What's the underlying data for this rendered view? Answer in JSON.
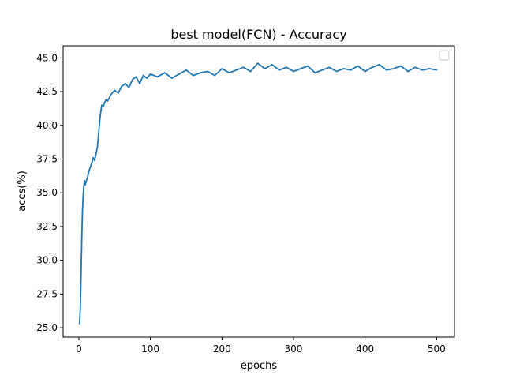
{
  "chart_data": {
    "type": "line",
    "title": "best model(FCN) - Accuracy",
    "xlabel": "epochs",
    "ylabel": "accs(%)",
    "xlim": [
      -22,
      525
    ],
    "ylim": [
      24.3,
      45.9
    ],
    "xticks": [
      0,
      100,
      200,
      300,
      400,
      500
    ],
    "yticks": [
      25.0,
      27.5,
      30.0,
      32.5,
      35.0,
      37.5,
      40.0,
      42.5,
      45.0
    ],
    "xtick_labels": [
      "0",
      "100",
      "200",
      "300",
      "400",
      "500"
    ],
    "ytick_labels": [
      "25.0",
      "27.5",
      "30.0",
      "32.5",
      "35.0",
      "37.5",
      "40.0",
      "42.5",
      "45.0"
    ],
    "grid": false,
    "legend": "top-right",
    "legend_entries": [],
    "color": "#1f77b4",
    "series": [
      {
        "x": [
          1,
          2,
          3,
          4,
          5,
          6,
          7,
          8,
          9,
          10,
          12,
          14,
          16,
          18,
          20,
          22,
          24,
          26,
          28,
          30,
          32,
          34,
          36,
          38,
          40,
          45,
          50,
          55,
          60,
          65,
          70,
          75,
          80,
          85,
          90,
          95,
          100,
          110,
          120,
          130,
          140,
          150,
          160,
          170,
          180,
          190,
          200,
          210,
          220,
          230,
          240,
          250,
          260,
          270,
          280,
          290,
          300,
          310,
          320,
          330,
          340,
          350,
          360,
          370,
          380,
          390,
          400,
          410,
          420,
          430,
          440,
          450,
          460,
          470,
          480,
          490,
          500
        ],
        "y": [
          25.3,
          26.5,
          28.8,
          31.5,
          33.6,
          34.8,
          35.5,
          35.9,
          35.6,
          35.8,
          36.1,
          36.6,
          36.9,
          37.2,
          37.6,
          37.4,
          37.9,
          38.4,
          39.6,
          40.8,
          41.5,
          41.4,
          41.7,
          41.9,
          41.8,
          42.3,
          42.6,
          42.4,
          42.9,
          43.1,
          42.8,
          43.4,
          43.6,
          43.1,
          43.7,
          43.5,
          43.8,
          43.6,
          43.9,
          43.5,
          43.8,
          44.1,
          43.7,
          43.9,
          44.0,
          43.7,
          44.2,
          43.9,
          44.1,
          44.3,
          44.0,
          44.6,
          44.2,
          44.5,
          44.1,
          44.3,
          44.0,
          44.2,
          44.4,
          43.9,
          44.1,
          44.3,
          44.0,
          44.2,
          44.1,
          44.4,
          44.0,
          44.3,
          44.5,
          44.1,
          44.2,
          44.4,
          44.0,
          44.3,
          44.1,
          44.2,
          44.1
        ]
      }
    ]
  }
}
